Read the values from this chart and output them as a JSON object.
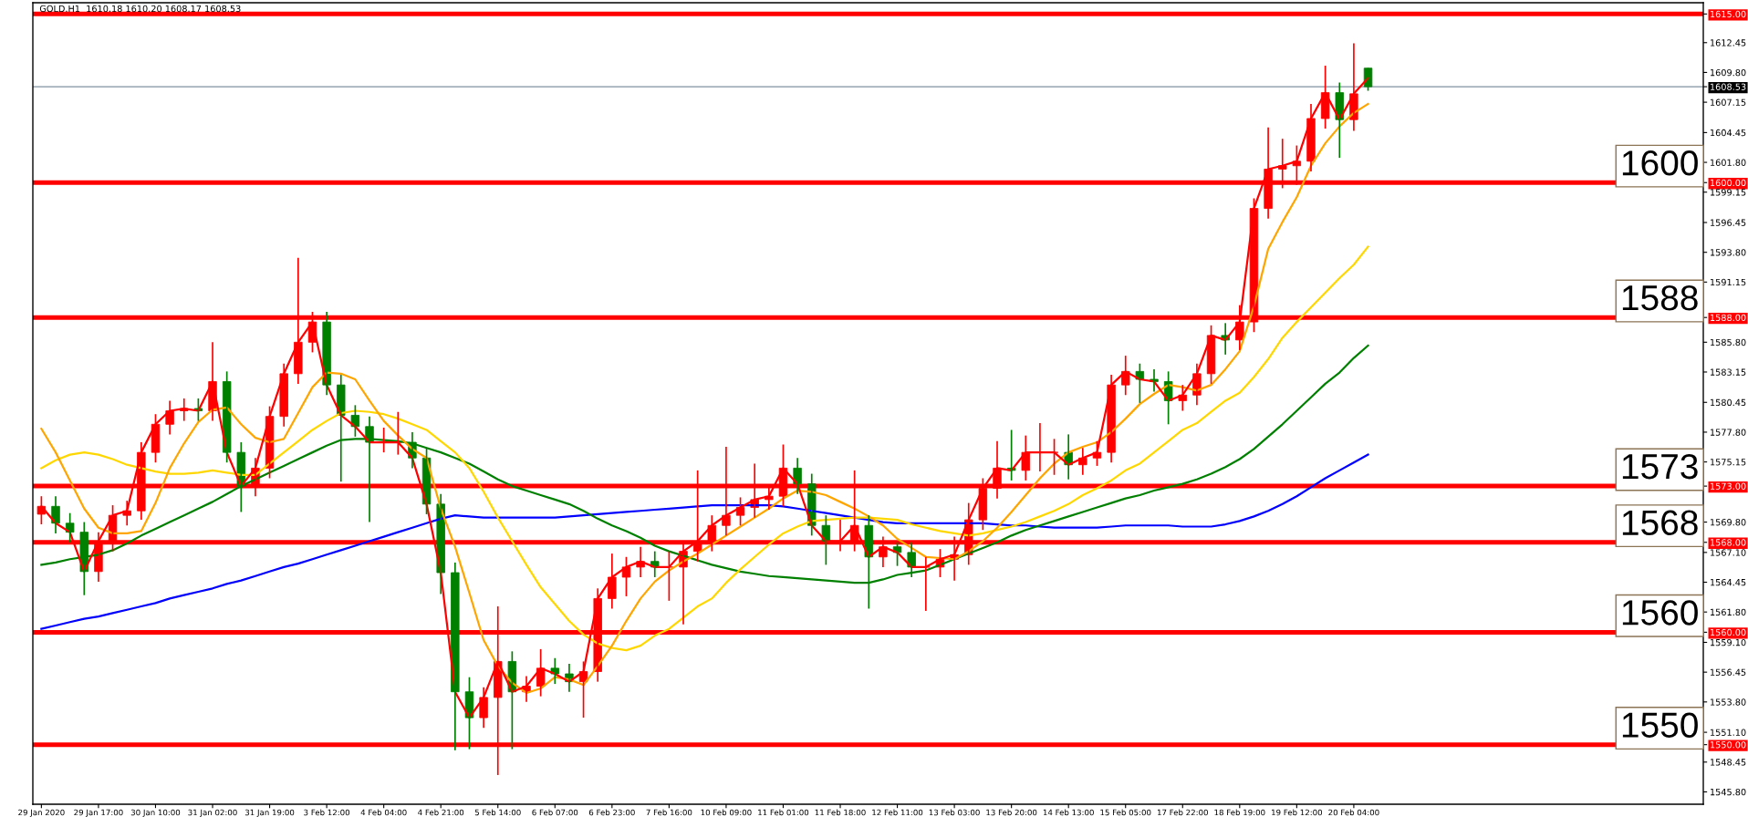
{
  "chart_data": {
    "type": "candlestick",
    "title": "GOLD.H1  1610.18 1610.20 1608.17 1608.53",
    "categories": [
      "29 Jan 2020",
      null,
      null,
      null,
      "29 Jan 17:00",
      null,
      null,
      null,
      "30 Jan 10:00",
      null,
      null,
      null,
      "31 Jan 02:00",
      null,
      null,
      null,
      "31 Jan 19:00",
      null,
      null,
      null,
      "3 Feb 12:00",
      null,
      null,
      null,
      "4 Feb 04:00",
      null,
      null,
      null,
      "4 Feb 21:00",
      null,
      null,
      null,
      "5 Feb 14:00",
      null,
      null,
      null,
      "6 Feb 07:00",
      null,
      null,
      null,
      "6 Feb 23:00",
      null,
      null,
      null,
      "7 Feb 16:00",
      null,
      null,
      null,
      "10 Feb 09:00",
      null,
      null,
      null,
      "11 Feb 01:00",
      null,
      null,
      null,
      "11 Feb 18:00",
      null,
      null,
      null,
      "12 Feb 11:00",
      null,
      null,
      null,
      "13 Feb 03:00",
      null,
      null,
      null,
      "13 Feb 20:00",
      null,
      null,
      null,
      "14 Feb 13:00",
      null,
      null,
      null,
      "15 Feb 05:00",
      null,
      null,
      null,
      "17 Feb 22:00",
      null,
      null,
      null,
      "18 Feb 19:00",
      null,
      null,
      null,
      "19 Feb 12:00",
      null,
      null,
      null,
      "20 Feb 04:00",
      null
    ],
    "ohlc": [
      [
        1570.5,
        1572.1,
        1569.6,
        1571.2
      ],
      [
        1571.2,
        1572.1,
        1568.8,
        1569.7
      ],
      [
        1569.7,
        1570.6,
        1568.0,
        1568.9
      ],
      [
        1568.9,
        1569.8,
        1563.3,
        1565.4
      ],
      [
        1565.4,
        1568.9,
        1564.5,
        1568.1
      ],
      [
        1568.1,
        1571.3,
        1567.2,
        1570.4
      ],
      [
        1570.4,
        1571.7,
        1569.5,
        1570.8
      ],
      [
        1570.8,
        1576.9,
        1570.0,
        1576.0
      ],
      [
        1576.0,
        1579.4,
        1575.1,
        1578.5
      ],
      [
        1578.5,
        1580.6,
        1577.6,
        1579.7
      ],
      [
        1579.7,
        1580.8,
        1578.8,
        1579.9
      ],
      [
        1579.9,
        1580.8,
        1578.8,
        1579.7
      ],
      [
        1579.7,
        1585.8,
        1578.8,
        1582.3
      ],
      [
        1582.3,
        1583.2,
        1575.1,
        1576.0
      ],
      [
        1576.0,
        1576.9,
        1570.7,
        1573.0
      ],
      [
        1573.0,
        1575.5,
        1572.1,
        1574.6
      ],
      [
        1574.6,
        1580.1,
        1573.7,
        1579.2
      ],
      [
        1579.2,
        1583.9,
        1578.3,
        1583.0
      ],
      [
        1583.0,
        1593.3,
        1582.1,
        1585.8
      ],
      [
        1585.8,
        1588.5,
        1584.9,
        1587.6
      ],
      [
        1587.6,
        1588.5,
        1581.1,
        1582.0
      ],
      [
        1582.0,
        1582.9,
        1573.4,
        1579.3
      ],
      [
        1579.3,
        1580.2,
        1577.4,
        1578.3
      ],
      [
        1578.3,
        1579.2,
        1569.8,
        1576.9
      ],
      [
        1576.9,
        1578.2,
        1576.0,
        1576.9
      ],
      [
        1576.9,
        1579.6,
        1575.8,
        1576.9
      ],
      [
        1576.9,
        1577.8,
        1574.6,
        1575.5
      ],
      [
        1575.5,
        1576.4,
        1570.5,
        1571.4
      ],
      [
        1571.4,
        1572.3,
        1563.4,
        1565.3
      ],
      [
        1565.3,
        1566.2,
        1549.5,
        1554.7
      ],
      [
        1554.7,
        1556.0,
        1549.6,
        1552.4
      ],
      [
        1552.4,
        1555.1,
        1551.5,
        1554.2
      ],
      [
        1554.2,
        1562.3,
        1547.3,
        1557.4
      ],
      [
        1557.4,
        1558.3,
        1549.6,
        1554.7
      ],
      [
        1554.7,
        1556.1,
        1553.8,
        1555.2
      ],
      [
        1555.2,
        1558.5,
        1554.3,
        1556.8
      ],
      [
        1556.8,
        1557.7,
        1555.4,
        1556.3
      ],
      [
        1556.3,
        1557.2,
        1554.7,
        1555.6
      ],
      [
        1555.6,
        1557.4,
        1552.4,
        1556.5
      ],
      [
        1556.5,
        1563.9,
        1555.6,
        1563.0
      ],
      [
        1563.0,
        1567.0,
        1562.1,
        1564.9
      ],
      [
        1564.9,
        1566.7,
        1563.2,
        1565.8
      ],
      [
        1565.8,
        1567.6,
        1564.9,
        1566.3
      ],
      [
        1566.3,
        1567.2,
        1564.9,
        1565.8
      ],
      [
        1565.8,
        1567.2,
        1562.8,
        1565.8
      ],
      [
        1565.8,
        1568.1,
        1560.7,
        1567.2
      ],
      [
        1567.2,
        1574.4,
        1566.3,
        1568.1
      ],
      [
        1568.1,
        1570.4,
        1567.2,
        1569.5
      ],
      [
        1569.5,
        1576.5,
        1568.6,
        1570.4
      ],
      [
        1570.4,
        1572.0,
        1569.5,
        1571.1
      ],
      [
        1571.1,
        1575.0,
        1570.2,
        1571.8
      ],
      [
        1571.8,
        1573.0,
        1570.9,
        1572.1
      ],
      [
        1572.1,
        1576.7,
        1571.2,
        1574.6
      ],
      [
        1574.6,
        1575.5,
        1572.3,
        1573.2
      ],
      [
        1573.2,
        1574.1,
        1568.6,
        1569.5
      ],
      [
        1569.5,
        1570.4,
        1566.0,
        1568.1
      ],
      [
        1568.1,
        1570.0,
        1567.2,
        1568.1
      ],
      [
        1568.1,
        1574.4,
        1567.2,
        1569.5
      ],
      [
        1569.5,
        1570.4,
        1562.1,
        1566.7
      ],
      [
        1566.7,
        1568.5,
        1565.8,
        1567.6
      ],
      [
        1567.6,
        1568.0,
        1565.9,
        1567.1
      ],
      [
        1567.1,
        1568.0,
        1564.9,
        1565.8
      ],
      [
        1565.8,
        1566.7,
        1561.9,
        1565.8
      ],
      [
        1565.8,
        1567.4,
        1564.9,
        1566.5
      ],
      [
        1566.5,
        1568.5,
        1564.6,
        1566.9
      ],
      [
        1566.9,
        1571.5,
        1566.0,
        1570.0
      ],
      [
        1570.0,
        1573.7,
        1569.1,
        1572.8
      ],
      [
        1572.8,
        1577.0,
        1571.9,
        1574.6
      ],
      [
        1574.6,
        1578.0,
        1573.5,
        1574.4
      ],
      [
        1574.4,
        1577.5,
        1573.5,
        1576.0
      ],
      [
        1576.0,
        1578.6,
        1574.3,
        1576.0
      ],
      [
        1576.0,
        1577.2,
        1574.0,
        1576.0
      ],
      [
        1576.0,
        1577.6,
        1573.6,
        1574.9
      ],
      [
        1574.9,
        1576.4,
        1574.0,
        1575.5
      ],
      [
        1575.5,
        1577.0,
        1574.8,
        1576.0
      ],
      [
        1576.0,
        1582.9,
        1575.1,
        1582.0
      ],
      [
        1582.0,
        1584.6,
        1581.1,
        1583.2
      ],
      [
        1583.2,
        1583.9,
        1580.4,
        1582.5
      ],
      [
        1582.5,
        1583.4,
        1581.4,
        1582.3
      ],
      [
        1582.3,
        1583.2,
        1578.5,
        1580.6
      ],
      [
        1580.6,
        1582.0,
        1579.7,
        1581.1
      ],
      [
        1581.1,
        1583.9,
        1580.2,
        1583.0
      ],
      [
        1583.0,
        1587.3,
        1582.1,
        1586.4
      ],
      [
        1586.4,
        1587.5,
        1584.7,
        1586.0
      ],
      [
        1586.0,
        1589.1,
        1585.1,
        1587.6
      ],
      [
        1587.6,
        1598.6,
        1586.7,
        1597.7
      ],
      [
        1597.7,
        1604.9,
        1596.8,
        1601.2
      ],
      [
        1601.2,
        1603.9,
        1599.5,
        1601.5
      ],
      [
        1601.5,
        1603.3,
        1599.8,
        1601.9
      ],
      [
        1601.9,
        1607.0,
        1601.0,
        1605.7
      ],
      [
        1605.7,
        1610.4,
        1604.8,
        1608.0
      ],
      [
        1608.0,
        1608.9,
        1602.2,
        1605.6
      ],
      [
        1605.6,
        1612.4,
        1604.6,
        1607.9
      ],
      [
        1610.18,
        1610.2,
        1608.17,
        1608.53
      ]
    ],
    "colors": [
      "#ff0000",
      "#008000",
      "#008000",
      "#008000",
      "#ff0000",
      "#ff0000",
      "#ff0000",
      "#ff0000",
      "#ff0000",
      "#ff0000",
      "#ff0000",
      "#008000",
      "#ff0000",
      "#008000",
      "#008000",
      "#ff0000",
      "#ff0000",
      "#ff0000",
      "#ff0000",
      "#ff0000",
      "#008000",
      "#008000",
      "#008000",
      "#008000",
      "#ff0000",
      "#ff0000",
      "#008000",
      "#008000",
      "#008000",
      "#008000",
      "#008000",
      "#ff0000",
      "#ff0000",
      "#008000",
      "#ff0000",
      "#ff0000",
      "#008000",
      "#008000",
      "#ff0000",
      "#ff0000",
      "#ff0000",
      "#ff0000",
      "#ff0000",
      "#008000",
      "#ff0000",
      "#ff0000",
      "#ff0000",
      "#ff0000",
      "#ff0000",
      "#ff0000",
      "#ff0000",
      "#ff0000",
      "#ff0000",
      "#008000",
      "#008000",
      "#008000",
      "#ff0000",
      "#ff0000",
      "#008000",
      "#ff0000",
      "#008000",
      "#008000",
      "#ff0000",
      "#ff0000",
      "#ff0000",
      "#ff0000",
      "#ff0000",
      "#ff0000",
      "#008000",
      "#ff0000",
      "#ff0000",
      "#ff0000",
      "#008000",
      "#ff0000",
      "#ff0000",
      "#ff0000",
      "#ff0000",
      "#008000",
      "#008000",
      "#008000",
      "#ff0000",
      "#ff0000",
      "#ff0000",
      "#008000",
      "#ff0000",
      "#ff0000",
      "#ff0000",
      "#ff0000",
      "#ff0000",
      "#ff0000",
      "#ff0000",
      "#008000",
      "#ff0000",
      "#008000"
    ],
    "series": [
      {
        "type": "line",
        "color": "#0000ff",
        "values": [
          1560.3,
          1560.6,
          1560.9,
          1561.2,
          1561.4,
          1561.7,
          1562.0,
          1562.3,
          1562.6,
          1563.0,
          1563.3,
          1563.6,
          1563.9,
          1564.3,
          1564.6,
          1565.0,
          1565.4,
          1565.8,
          1566.1,
          1566.5,
          1566.9,
          1567.3,
          1567.7,
          1568.1,
          1568.5,
          1568.9,
          1569.3,
          1569.7,
          1570.1,
          1570.4,
          1570.3,
          1570.2,
          1570.2,
          1570.2,
          1570.2,
          1570.2,
          1570.2,
          1570.3,
          1570.4,
          1570.5,
          1570.6,
          1570.7,
          1570.8,
          1570.9,
          1571.0,
          1571.1,
          1571.2,
          1571.3,
          1571.3,
          1571.3,
          1571.3,
          1571.3,
          1571.2,
          1571.0,
          1570.8,
          1570.6,
          1570.4,
          1570.2,
          1570.0,
          1569.8,
          1569.7,
          1569.7,
          1569.7,
          1569.7,
          1569.7,
          1569.7,
          1569.7,
          1569.6,
          1569.5,
          1569.5,
          1569.4,
          1569.3,
          1569.3,
          1569.3,
          1569.3,
          1569.4,
          1569.5,
          1569.5,
          1569.5,
          1569.5,
          1569.4,
          1569.4,
          1569.4,
          1569.6,
          1569.9,
          1570.3,
          1570.8,
          1571.4,
          1572.1,
          1572.9,
          1573.7,
          1574.4,
          1575.1,
          1575.8
        ]
      },
      {
        "type": "line",
        "color": "#008000",
        "values": [
          1566.0,
          1566.2,
          1566.5,
          1566.7,
          1566.9,
          1567.3,
          1567.9,
          1568.6,
          1569.2,
          1569.8,
          1570.4,
          1571.0,
          1571.6,
          1572.3,
          1573.0,
          1573.6,
          1574.2,
          1574.8,
          1575.4,
          1576.0,
          1576.6,
          1577.1,
          1577.2,
          1577.2,
          1577.1,
          1577.0,
          1576.8,
          1576.4,
          1576.0,
          1575.5,
          1575.0,
          1574.3,
          1573.6,
          1573.0,
          1572.6,
          1572.2,
          1571.8,
          1571.4,
          1570.8,
          1570.1,
          1569.5,
          1569.0,
          1568.4,
          1567.7,
          1567.2,
          1566.8,
          1566.4,
          1566.0,
          1565.7,
          1565.4,
          1565.2,
          1565.0,
          1564.9,
          1564.8,
          1564.7,
          1564.6,
          1564.5,
          1564.4,
          1564.4,
          1564.7,
          1565.1,
          1565.3,
          1565.5,
          1566.0,
          1566.5,
          1567.0,
          1567.5,
          1568.0,
          1568.6,
          1569.1,
          1569.5,
          1569.9,
          1570.3,
          1570.7,
          1571.1,
          1571.5,
          1571.9,
          1572.2,
          1572.6,
          1572.9,
          1573.2,
          1573.6,
          1574.1,
          1574.7,
          1575.4,
          1576.3,
          1577.4,
          1578.5,
          1579.7,
          1580.9,
          1582.1,
          1583.1,
          1584.4,
          1585.5
        ]
      },
      {
        "type": "line",
        "color": "#ffd700",
        "values": [
          1574.6,
          1575.3,
          1575.8,
          1576.0,
          1575.8,
          1575.4,
          1574.9,
          1574.6,
          1574.3,
          1574.1,
          1574.1,
          1574.2,
          1574.4,
          1574.2,
          1574.0,
          1574.0,
          1575.0,
          1576.0,
          1577.0,
          1578.0,
          1578.8,
          1579.5,
          1579.7,
          1579.6,
          1579.4,
          1579.0,
          1578.5,
          1578.0,
          1577.0,
          1576.0,
          1574.6,
          1572.5,
          1570.2,
          1568.1,
          1566.0,
          1564.0,
          1562.5,
          1561.0,
          1559.8,
          1559.0,
          1558.6,
          1558.4,
          1558.8,
          1559.7,
          1560.3,
          1561.3,
          1562.3,
          1563.0,
          1564.4,
          1565.6,
          1566.7,
          1567.8,
          1568.8,
          1569.4,
          1569.9,
          1570.0,
          1570.1,
          1570.2,
          1570.2,
          1570.1,
          1570.0,
          1569.6,
          1569.3,
          1569.0,
          1568.8,
          1568.6,
          1568.8,
          1569.1,
          1569.4,
          1569.8,
          1570.3,
          1570.8,
          1571.4,
          1572.2,
          1572.8,
          1573.5,
          1574.4,
          1575.0,
          1576.0,
          1577.0,
          1578.0,
          1578.6,
          1579.6,
          1580.6,
          1581.3,
          1582.7,
          1584.3,
          1586.2,
          1587.6,
          1588.9,
          1590.2,
          1591.5,
          1592.7,
          1594.3
        ]
      },
      {
        "type": "line",
        "color": "#ffa500",
        "values": [
          1578.1,
          1576.0,
          1573.5,
          1571.0,
          1569.3,
          1568.8,
          1568.8,
          1569.0,
          1571.5,
          1574.6,
          1576.8,
          1578.7,
          1579.8,
          1580.0,
          1578.5,
          1577.3,
          1576.9,
          1577.2,
          1579.5,
          1581.8,
          1583.1,
          1583.0,
          1582.5,
          1580.6,
          1578.8,
          1577.5,
          1576.3,
          1575.5,
          1571.0,
          1567.6,
          1563.5,
          1559.3,
          1557.0,
          1555.5,
          1554.6,
          1555.0,
          1556.0,
          1555.8,
          1555.3,
          1557.0,
          1558.8,
          1561.0,
          1563.0,
          1564.5,
          1565.5,
          1566.3,
          1567.0,
          1567.8,
          1568.6,
          1569.4,
          1570.2,
          1571.0,
          1571.9,
          1572.6,
          1572.5,
          1572.2,
          1571.6,
          1571.0,
          1570.3,
          1569.5,
          1568.3,
          1567.5,
          1566.7,
          1566.6,
          1566.5,
          1567.2,
          1568.1,
          1569.3,
          1570.7,
          1572.2,
          1573.7,
          1575.0,
          1576.0,
          1576.5,
          1576.9,
          1577.8,
          1579.0,
          1580.3,
          1581.2,
          1582.0,
          1581.8,
          1581.5,
          1582.0,
          1583.4,
          1585.0,
          1589.0,
          1594.1,
          1596.5,
          1598.7,
          1601.5,
          1603.5,
          1605.0,
          1606.2,
          1607.0
        ]
      },
      {
        "type": "line",
        "color": "#ff0000",
        "values": [
          1571.2,
          1569.7,
          1568.9,
          1565.4,
          1568.1,
          1570.4,
          1570.8,
          1576.0,
          1578.5,
          1579.7,
          1579.9,
          1579.7,
          1582.3,
          1576.0,
          1573.0,
          1574.6,
          1579.2,
          1583.0,
          1585.8,
          1587.6,
          1582.0,
          1579.3,
          1578.3,
          1576.9,
          1576.9,
          1576.9,
          1575.5,
          1571.4,
          1565.3,
          1554.7,
          1552.4,
          1554.2,
          1557.4,
          1554.7,
          1555.2,
          1556.8,
          1556.3,
          1555.6,
          1556.5,
          1563.0,
          1564.9,
          1565.8,
          1566.3,
          1565.8,
          1565.8,
          1567.2,
          1568.1,
          1569.5,
          1570.4,
          1571.1,
          1571.8,
          1572.1,
          1574.6,
          1573.2,
          1569.5,
          1568.1,
          1568.1,
          1569.5,
          1566.7,
          1567.6,
          1567.1,
          1565.8,
          1565.8,
          1566.5,
          1566.9,
          1570.0,
          1572.8,
          1574.6,
          1574.4,
          1576.0,
          1576.0,
          1576.0,
          1574.9,
          1575.5,
          1576.0,
          1582.0,
          1583.2,
          1582.5,
          1582.3,
          1580.6,
          1581.1,
          1583.0,
          1586.4,
          1586.0,
          1587.6,
          1597.7,
          1601.2,
          1601.5,
          1601.9,
          1605.7,
          1608.0,
          1605.6,
          1607.9,
          1609.3
        ]
      }
    ],
    "ylim": [
      1544.7,
      1616.0
    ],
    "yticks": [
      {
        "value": 1615.0,
        "label": "1615.00"
      },
      {
        "value": 1600.0,
        "label": "1600.00"
      },
      {
        "value": 1588.0,
        "label": "1588.00"
      },
      {
        "value": 1573.0,
        "label": "1573.00"
      },
      {
        "value": 1568.0,
        "label": "1568.00"
      },
      {
        "value": 1560.0,
        "label": "1560.00"
      },
      {
        "value": 1550.0,
        "label": "1550.00"
      },
      {
        "value": 1608.53,
        "label": "1608.53"
      },
      {
        "value": 1545.8,
        "label": "1545.80"
      },
      {
        "value": 1548.45,
        "label": "1548.45"
      },
      {
        "value": 1551.1,
        "label": "1551.10"
      },
      {
        "value": 1553.8,
        "label": "1553.80"
      },
      {
        "value": 1556.45,
        "label": "1556.45"
      },
      {
        "value": 1559.1,
        "label": "1559.10"
      },
      {
        "value": 1561.8,
        "label": "1561.80"
      },
      {
        "value": 1564.45,
        "label": "1564.45"
      },
      {
        "value": 1567.1,
        "label": "1567.10"
      },
      {
        "value": 1569.8,
        "label": "1569.80"
      },
      {
        "value": 1575.15,
        "label": "1575.15"
      },
      {
        "value": 1577.8,
        "label": "1577.80"
      },
      {
        "value": 1580.45,
        "label": "1580.45"
      },
      {
        "value": 1583.15,
        "label": "1583.15"
      },
      {
        "value": 1585.8,
        "label": "1585.80"
      },
      {
        "value": 1591.15,
        "label": "1591.15"
      },
      {
        "value": 1593.8,
        "label": "1593.80"
      },
      {
        "value": 1596.45,
        "label": "1596.45"
      },
      {
        "value": 1599.15,
        "label": "1599.15"
      },
      {
        "value": 1601.8,
        "label": "1601.80"
      },
      {
        "value": 1604.45,
        "label": "1604.45"
      },
      {
        "value": 1607.15,
        "label": "1607.15"
      },
      {
        "value": 1609.8,
        "label": "1609.80"
      },
      {
        "value": 1612.45,
        "label": "1612.45"
      }
    ],
    "ref_lines": [
      {
        "axis": "y",
        "value": 1615.0,
        "label": null,
        "color": "#ff0000",
        "line_style": "solid"
      },
      {
        "axis": "y",
        "value": 1600.0,
        "label": "1600",
        "color": "#ff0000",
        "line_style": "solid"
      },
      {
        "axis": "y",
        "value": 1588.0,
        "label": "1588",
        "color": "#ff0000",
        "line_style": "solid"
      },
      {
        "axis": "y",
        "value": 1573.0,
        "label": "1573",
        "color": "#ff0000",
        "line_style": "solid"
      },
      {
        "axis": "y",
        "value": 1568.0,
        "label": "1568",
        "color": "#ff0000",
        "line_style": "solid"
      },
      {
        "axis": "y",
        "value": 1560.0,
        "label": "1560",
        "color": "#ff0000",
        "line_style": "solid"
      },
      {
        "axis": "y",
        "value": 1550.0,
        "label": "1550",
        "color": "#ff0000",
        "line_style": "solid"
      },
      {
        "axis": "y",
        "value": 1608.53,
        "label": null,
        "color": "#8090a0",
        "line_style": "solid"
      }
    ],
    "grid": false,
    "legend": false
  }
}
